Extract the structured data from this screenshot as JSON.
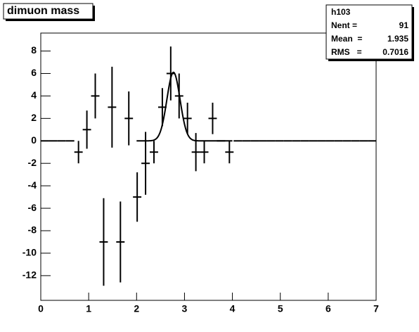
{
  "chart_data": {
    "type": "errorbar-histogram",
    "title": "dimuon mass",
    "bins": [
      0,
      0.175,
      0.35,
      0.525,
      0.7,
      0.875,
      1.05,
      1.225,
      1.4,
      1.575,
      1.75,
      1.925,
      2.1,
      2.275,
      2.45,
      2.625,
      2.8,
      2.975,
      3.15,
      3.325,
      3.5,
      3.675,
      3.85,
      4.025,
      4.2,
      4.375,
      4.55,
      4.725,
      4.9,
      5.075,
      5.25,
      5.425,
      5.6,
      5.775,
      5.95,
      6.125,
      6.3,
      6.475,
      6.65,
      6.825,
      7
    ],
    "values": [
      0,
      0,
      0,
      0,
      -1,
      1,
      4,
      -9,
      3,
      -9,
      2,
      -5,
      -2,
      -1,
      3,
      6,
      4,
      2,
      -1,
      -1,
      2,
      0,
      -1,
      0,
      0,
      0,
      0,
      0,
      0,
      0,
      0,
      0,
      0,
      0,
      0,
      0,
      0,
      0,
      0,
      0
    ],
    "errors": [
      0,
      0,
      0,
      0,
      1,
      1.7,
      2,
      3.9,
      3.6,
      3.6,
      2.4,
      2.2,
      2.8,
      1,
      1.7,
      2.4,
      2,
      1.4,
      1.7,
      1,
      1.4,
      0,
      1,
      0,
      0,
      0,
      0,
      0,
      0,
      0,
      0,
      0,
      0,
      0,
      0,
      0,
      0,
      0,
      0,
      0
    ],
    "color": "#000000",
    "fit": {
      "constant": 6.1,
      "mean": 2.77,
      "sigma": 0.137,
      "range": [
        2,
        4
      ]
    },
    "xlim": [
      0,
      7
    ],
    "xticks": [
      0,
      1,
      2,
      3,
      4,
      5,
      6,
      7
    ],
    "ylim": [
      -14.2,
      9.6
    ],
    "yticks": [
      -12,
      -10,
      -8,
      -6,
      -4,
      -2,
      0,
      2,
      4,
      6,
      8
    ],
    "stats": {
      "name": "h103",
      "entries": [
        {
          "label": "Nent =",
          "value": 91
        },
        {
          "label": "Mean  =",
          "value": 1.935
        },
        {
          "label": "RMS   =",
          "value": 0.7016
        }
      ]
    }
  }
}
